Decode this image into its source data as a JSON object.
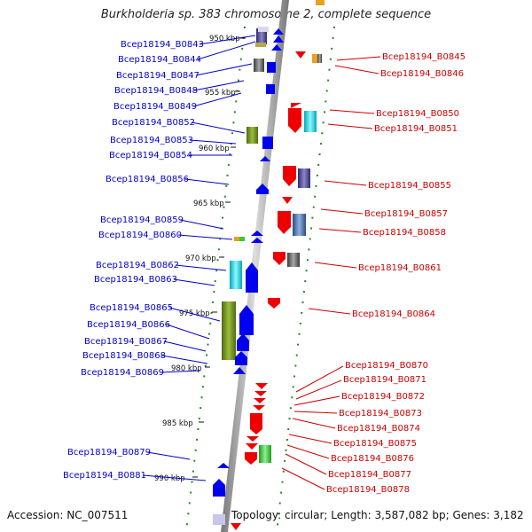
{
  "title": "Burkholderia sp. 383 chromosome 2, complete sequence",
  "accession": "Accession: NC_007511",
  "topology": "Topology: circular; Length: 3,587,082 bp; Genes: 3,182",
  "kbp_marks": [
    "950 kbp",
    "955 kbp",
    "960 kbp",
    "965 kbp",
    "970 kbp",
    "975 kbp",
    "980 kbp",
    "985 kbp",
    "990 kbp"
  ],
  "left_genes": [
    "Bcep18194_B0843",
    "Bcep18194_B0844",
    "Bcep18194_B0847",
    "Bcep18194_B0848",
    "Bcep18194_B0849",
    "Bcep18194_B0852",
    "Bcep18194_B0853",
    "Bcep18194_B0854",
    "Bcep18194_B0856",
    "Bcep18194_B0859",
    "Bcep18194_B0860",
    "Bcep18194_B0862",
    "Bcep18194_B0863",
    "Bcep18194_B0865",
    "Bcep18194_B0866",
    "Bcep18194_B0867",
    "Bcep18194_B0868",
    "Bcep18194_B0869",
    "Bcep18194_B0879",
    "Bcep18194_B0881"
  ],
  "right_genes": [
    "Bcep18194_B0845",
    "Bcep18194_B0846",
    "Bcep18194_B0850",
    "Bcep18194_B0851",
    "Bcep18194_B0855",
    "Bcep18194_B0857",
    "Bcep18194_B0858",
    "Bcep18194_B0861",
    "Bcep18194_B0864",
    "Bcep18194_B0870",
    "Bcep18194_B0871",
    "Bcep18194_B0872",
    "Bcep18194_B0873",
    "Bcep18194_B0874",
    "Bcep18194_B0875",
    "Bcep18194_B0876",
    "Bcep18194_B0877",
    "Bcep18194_B0878"
  ],
  "colors": {
    "forward_strand": "#0000ee",
    "reverse_strand": "#ee0000",
    "left_label": "#0000cc",
    "right_label": "#cc0000",
    "ruler_dash": "#228822"
  }
}
